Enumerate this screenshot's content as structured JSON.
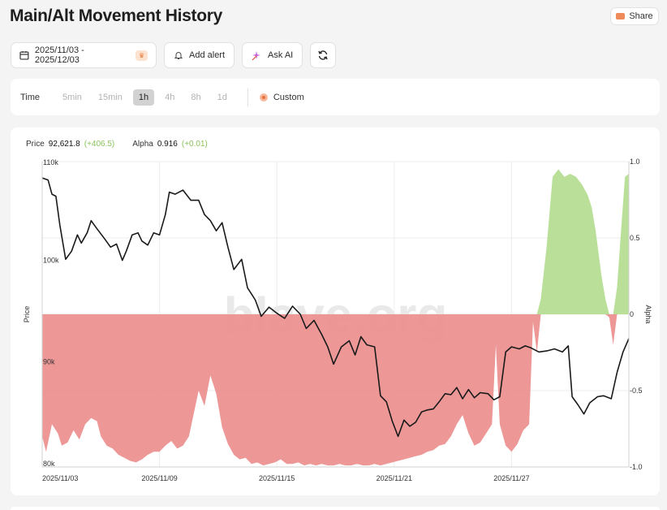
{
  "page": {
    "title": "Main/Alt Movement History"
  },
  "share": {
    "label": "Share"
  },
  "toolbar": {
    "date_range": "2025/11/03 - 2025/12/03",
    "add_alert": "Add alert",
    "ask_ai": "Ask AI"
  },
  "timeframe": {
    "label": "Time",
    "options": [
      "5min",
      "15min",
      "1h",
      "4h",
      "8h",
      "1d"
    ],
    "selected": "1h",
    "custom": "Custom"
  },
  "readout": {
    "price_label": "Price",
    "price_value": "92,621.8",
    "price_change": "(+406.5)",
    "alpha_label": "Alpha",
    "alpha_value": "0.916",
    "alpha_change": "(+0.01)"
  },
  "watermark": "blave.org",
  "colors": {
    "price_line": "#1a1a1a",
    "alpha_positive": "#b5dd94",
    "alpha_negative": "#ec9191",
    "change_positive": "#8ac45a"
  },
  "chart_data": {
    "type": "line",
    "x_start": "2025/11/03",
    "x_end": "2025/12/03",
    "x_ticks": [
      "2025/11/03",
      "2025/11/09",
      "2025/11/15",
      "2025/11/21",
      "2025/11/27"
    ],
    "y_left": {
      "label": "Price",
      "ticks": [
        "80k",
        "90k",
        "100k",
        "110k"
      ],
      "range": [
        80000,
        110000
      ]
    },
    "y_right": {
      "label": "Alpha",
      "ticks": [
        "-1.0",
        "-0.5",
        "0",
        "0.5",
        "1.0"
      ],
      "range": [
        -1,
        1
      ]
    },
    "grid": true,
    "series": [
      {
        "name": "Price",
        "kind": "line",
        "axis": "left",
        "points": [
          [
            0.0,
            108400
          ],
          [
            0.3,
            108200
          ],
          [
            0.5,
            106800
          ],
          [
            0.7,
            106600
          ],
          [
            0.9,
            103800
          ],
          [
            1.2,
            100400
          ],
          [
            1.5,
            101200
          ],
          [
            1.8,
            102800
          ],
          [
            2.0,
            102000
          ],
          [
            2.3,
            103000
          ],
          [
            2.5,
            104200
          ],
          [
            2.8,
            103400
          ],
          [
            3.2,
            102400
          ],
          [
            3.5,
            101600
          ],
          [
            3.8,
            101900
          ],
          [
            4.1,
            100300
          ],
          [
            4.3,
            101200
          ],
          [
            4.6,
            102800
          ],
          [
            4.9,
            103000
          ],
          [
            5.1,
            102200
          ],
          [
            5.4,
            101800
          ],
          [
            5.7,
            103000
          ],
          [
            6.0,
            102800
          ],
          [
            6.3,
            104800
          ],
          [
            6.5,
            107000
          ],
          [
            6.8,
            106800
          ],
          [
            7.2,
            107200
          ],
          [
            7.6,
            106200
          ],
          [
            8.0,
            106200
          ],
          [
            8.3,
            104800
          ],
          [
            8.6,
            104200
          ],
          [
            8.9,
            103200
          ],
          [
            9.2,
            104000
          ],
          [
            9.5,
            101600
          ],
          [
            9.8,
            99400
          ],
          [
            10.2,
            100400
          ],
          [
            10.5,
            97600
          ],
          [
            10.7,
            97000
          ],
          [
            10.9,
            96400
          ],
          [
            11.2,
            94800
          ],
          [
            11.6,
            95700
          ],
          [
            12.0,
            95100
          ],
          [
            12.4,
            94600
          ],
          [
            12.8,
            95800
          ],
          [
            13.2,
            95000
          ],
          [
            13.5,
            93600
          ],
          [
            13.9,
            94400
          ],
          [
            14.3,
            93000
          ],
          [
            14.6,
            91800
          ],
          [
            14.9,
            90100
          ],
          [
            15.3,
            91800
          ],
          [
            15.7,
            92400
          ],
          [
            16.0,
            91000
          ],
          [
            16.3,
            92800
          ],
          [
            16.6,
            92000
          ],
          [
            17.0,
            91800
          ],
          [
            17.3,
            87000
          ],
          [
            17.6,
            86400
          ],
          [
            17.9,
            84500
          ],
          [
            18.2,
            83000
          ],
          [
            18.5,
            84600
          ],
          [
            18.8,
            84000
          ],
          [
            19.1,
            84400
          ],
          [
            19.4,
            85400
          ],
          [
            19.7,
            85600
          ],
          [
            20.0,
            85700
          ],
          [
            20.3,
            86400
          ],
          [
            20.6,
            87200
          ],
          [
            20.9,
            87100
          ],
          [
            21.2,
            87800
          ],
          [
            21.5,
            86700
          ],
          [
            21.8,
            87600
          ],
          [
            22.1,
            86800
          ],
          [
            22.4,
            87300
          ],
          [
            22.8,
            87200
          ],
          [
            23.1,
            86600
          ],
          [
            23.4,
            86900
          ],
          [
            23.7,
            91300
          ],
          [
            24.0,
            91800
          ],
          [
            24.4,
            91600
          ],
          [
            24.7,
            91900
          ],
          [
            25.0,
            91700
          ],
          [
            25.4,
            91300
          ],
          [
            25.8,
            91400
          ],
          [
            26.2,
            91600
          ],
          [
            26.6,
            91300
          ],
          [
            26.9,
            91900
          ],
          [
            27.1,
            86900
          ],
          [
            27.4,
            86100
          ],
          [
            27.7,
            85200
          ],
          [
            28.0,
            86300
          ],
          [
            28.4,
            86900
          ],
          [
            28.7,
            87000
          ],
          [
            29.1,
            86700
          ],
          [
            29.4,
            89300
          ],
          [
            29.7,
            91300
          ],
          [
            30.0,
            92622
          ]
        ]
      },
      {
        "name": "Alpha",
        "kind": "area",
        "axis": "right",
        "points": [
          [
            0.0,
            -0.8
          ],
          [
            0.2,
            -0.9
          ],
          [
            0.5,
            -0.72
          ],
          [
            0.8,
            -0.78
          ],
          [
            1.0,
            -0.86
          ],
          [
            1.3,
            -0.84
          ],
          [
            1.6,
            -0.76
          ],
          [
            1.9,
            -0.82
          ],
          [
            2.2,
            -0.72
          ],
          [
            2.5,
            -0.68
          ],
          [
            2.8,
            -0.7
          ],
          [
            3.0,
            -0.8
          ],
          [
            3.3,
            -0.86
          ],
          [
            3.6,
            -0.88
          ],
          [
            3.9,
            -0.92
          ],
          [
            4.2,
            -0.94
          ],
          [
            4.5,
            -0.96
          ],
          [
            4.8,
            -0.97
          ],
          [
            5.1,
            -0.95
          ],
          [
            5.4,
            -0.92
          ],
          [
            5.7,
            -0.9
          ],
          [
            6.0,
            -0.9
          ],
          [
            6.3,
            -0.86
          ],
          [
            6.6,
            -0.83
          ],
          [
            6.9,
            -0.88
          ],
          [
            7.2,
            -0.86
          ],
          [
            7.5,
            -0.8
          ],
          [
            7.8,
            -0.62
          ],
          [
            8.0,
            -0.5
          ],
          [
            8.3,
            -0.6
          ],
          [
            8.6,
            -0.4
          ],
          [
            8.9,
            -0.52
          ],
          [
            9.2,
            -0.74
          ],
          [
            9.5,
            -0.85
          ],
          [
            9.8,
            -0.92
          ],
          [
            10.1,
            -0.95
          ],
          [
            10.4,
            -0.94
          ],
          [
            10.7,
            -0.98
          ],
          [
            11.0,
            -0.97
          ],
          [
            11.3,
            -0.99
          ],
          [
            11.6,
            -0.98
          ],
          [
            11.9,
            -0.97
          ],
          [
            12.2,
            -0.95
          ],
          [
            12.5,
            -0.98
          ],
          [
            12.8,
            -0.98
          ],
          [
            13.1,
            -0.97
          ],
          [
            13.4,
            -0.99
          ],
          [
            13.7,
            -0.98
          ],
          [
            14.0,
            -0.99
          ],
          [
            14.3,
            -0.98
          ],
          [
            14.6,
            -0.99
          ],
          [
            14.9,
            -0.99
          ],
          [
            15.2,
            -0.98
          ],
          [
            15.5,
            -0.99
          ],
          [
            15.8,
            -0.99
          ],
          [
            16.1,
            -0.98
          ],
          [
            16.4,
            -0.99
          ],
          [
            16.7,
            -0.99
          ],
          [
            17.0,
            -0.98
          ],
          [
            17.3,
            -0.99
          ],
          [
            17.6,
            -0.98
          ],
          [
            17.9,
            -0.97
          ],
          [
            18.2,
            -0.96
          ],
          [
            18.5,
            -0.95
          ],
          [
            18.8,
            -0.94
          ],
          [
            19.1,
            -0.93
          ],
          [
            19.4,
            -0.92
          ],
          [
            19.7,
            -0.9
          ],
          [
            20.0,
            -0.89
          ],
          [
            20.3,
            -0.86
          ],
          [
            20.6,
            -0.85
          ],
          [
            20.9,
            -0.8
          ],
          [
            21.2,
            -0.72
          ],
          [
            21.5,
            -0.66
          ],
          [
            21.8,
            -0.78
          ],
          [
            22.1,
            -0.86
          ],
          [
            22.4,
            -0.84
          ],
          [
            22.7,
            -0.78
          ],
          [
            23.0,
            -0.72
          ],
          [
            23.2,
            -0.2
          ],
          [
            23.4,
            -0.72
          ],
          [
            23.7,
            -0.86
          ],
          [
            24.0,
            -0.9
          ],
          [
            24.3,
            -0.85
          ],
          [
            24.6,
            -0.76
          ],
          [
            24.9,
            -0.72
          ],
          [
            25.1,
            -0.05
          ],
          [
            25.3,
            -0.25
          ],
          [
            25.5,
            0.1
          ],
          [
            25.8,
            0.45
          ],
          [
            26.1,
            0.9
          ],
          [
            26.4,
            0.95
          ],
          [
            26.7,
            0.9
          ],
          [
            27.0,
            0.92
          ],
          [
            27.3,
            0.9
          ],
          [
            27.6,
            0.85
          ],
          [
            27.9,
            0.78
          ],
          [
            28.1,
            0.7
          ],
          [
            28.3,
            0.55
          ],
          [
            28.6,
            0.25
          ],
          [
            28.8,
            0.1
          ],
          [
            29.0,
            -0.02
          ],
          [
            29.2,
            -0.2
          ],
          [
            29.4,
            0.18
          ],
          [
            29.6,
            0.55
          ],
          [
            29.8,
            0.9
          ],
          [
            30.0,
            0.92
          ]
        ]
      }
    ]
  }
}
